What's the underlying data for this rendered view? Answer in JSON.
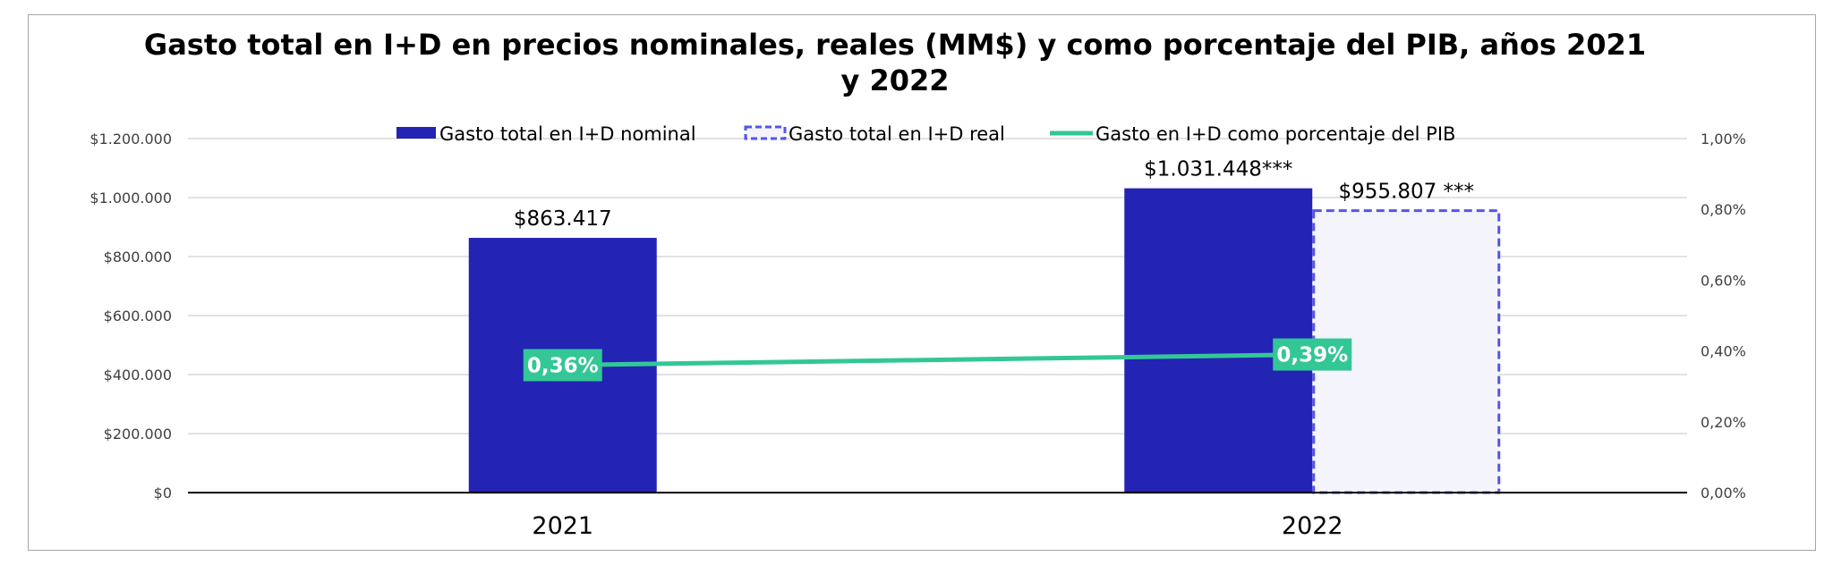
{
  "chart_data": {
    "type": "bar",
    "title": "Gasto total en I+D en precios nominales, reales (MM$) y como porcentaje del PIB, años 2021 y 2022",
    "categories": [
      "2021",
      "2022"
    ],
    "series": [
      {
        "name": "Gasto total en I+D nominal",
        "kind": "bar",
        "axis": "left",
        "color": "#2323b4",
        "values": [
          863417,
          1031448
        ],
        "labels": [
          "$863.417",
          "$1.031.448***"
        ]
      },
      {
        "name": "Gasto total en I+D real",
        "kind": "bar",
        "axis": "left",
        "style": "dashed-outline",
        "color": "#5555e6",
        "fill": "#f4f4fd",
        "values": [
          null,
          955807
        ],
        "labels": [
          null,
          "$955.807 ***"
        ]
      },
      {
        "name": "Gasto en I+D como porcentaje del PIB",
        "kind": "line",
        "axis": "right",
        "color": "#33c795",
        "values": [
          0.36,
          0.39
        ],
        "labels": [
          "0,36%",
          "0,39%"
        ]
      }
    ],
    "y_left": {
      "min": 0,
      "max": 1200000,
      "ticks": [
        0,
        200000,
        400000,
        600000,
        800000,
        1000000,
        1200000
      ],
      "tick_labels": [
        "$0",
        "$200.000",
        "$400.000",
        "$600.000",
        "$800.000",
        "$1.000.000",
        "$1.200.000"
      ]
    },
    "y_right": {
      "min": 0,
      "max": 1.0,
      "ticks": [
        0,
        0.2,
        0.4,
        0.6,
        0.8,
        1.0
      ],
      "tick_labels": [
        "0,00%",
        "0,20%",
        "0,40%",
        "0,60%",
        "0,80%",
        "1,00%"
      ]
    },
    "grid": true,
    "legend_position": "top"
  }
}
